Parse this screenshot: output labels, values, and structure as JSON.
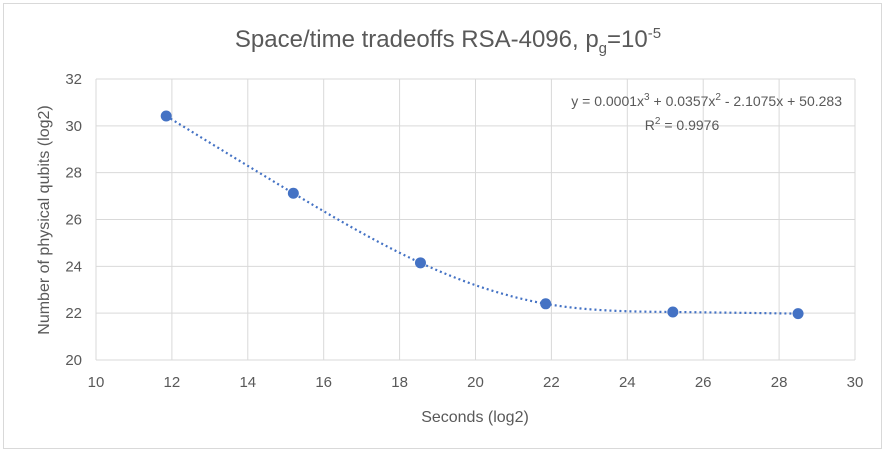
{
  "chart_data": {
    "type": "scatter",
    "title": {
      "prefix": "Space/time tradeoffs RSA-4096, p",
      "sub": "g",
      "mid": "=10",
      "sup": "-5"
    },
    "xlabel": "Seconds (log2)",
    "ylabel": "Number of physical qubits (log2)",
    "xlim": [
      10,
      30
    ],
    "ylim": [
      20,
      32
    ],
    "xticks": [
      10,
      12,
      14,
      16,
      18,
      20,
      22,
      24,
      26,
      28,
      30
    ],
    "yticks": [
      20,
      22,
      24,
      26,
      28,
      30,
      32
    ],
    "grid": true,
    "series": [
      {
        "x": [
          11.85,
          15.2,
          18.55,
          21.85,
          25.2,
          28.5
        ],
        "y": [
          30.42,
          27.12,
          24.15,
          22.4,
          22.05,
          21.98
        ],
        "color": "#4472c4"
      }
    ],
    "trendline": {
      "type": "polynomial-3",
      "coefficients": [
        0.0001,
        0.0357,
        -2.1075,
        50.283
      ],
      "x_range": [
        11.85,
        28.5
      ],
      "equation": {
        "p1": "y = 0.0001x",
        "s1": "3",
        "p2": " + 0.0357x",
        "s2": "2",
        "p3": " - 2.1075x + 50.283"
      },
      "r2": {
        "p1": "R",
        "s1": "2",
        "p2": " = 0.9976"
      }
    }
  }
}
